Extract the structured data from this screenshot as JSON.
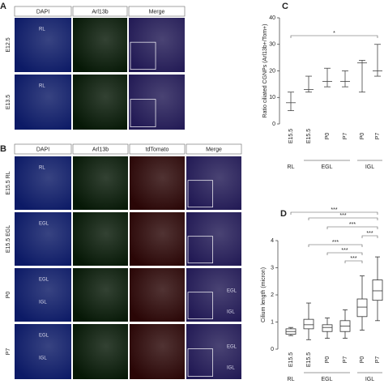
{
  "panel_a": {
    "label": "A",
    "columns": [
      "DAPI",
      "Arl13b",
      "Merge"
    ],
    "rows": [
      {
        "label": "E12.5",
        "tags": [
          "RL"
        ]
      },
      {
        "label": "E13.5",
        "tags": [
          "RL"
        ]
      }
    ]
  },
  "panel_b": {
    "label": "B",
    "columns": [
      "DAPI",
      "Arl13b",
      "tdTomato",
      "Merge"
    ],
    "rows": [
      {
        "label": "E15.5 RL",
        "tags": [
          "RL"
        ]
      },
      {
        "label": "E15.5 EGL",
        "tags": [
          "EGL"
        ]
      },
      {
        "label": "P0",
        "tags": [
          "EGL",
          "IGL"
        ],
        "inset_tags": [
          "EGL",
          "IGL"
        ]
      },
      {
        "label": "P7",
        "tags": [
          "EGL",
          "IGL"
        ],
        "inset_tags": [
          "EGL",
          "IGL"
        ]
      }
    ]
  },
  "chart_data": [
    {
      "type": "range",
      "label": "C",
      "ylabel": "Ratio ciliated CGNPs (Arl13b+/Tom+)",
      "categories": [
        "E15.5",
        "E15.5",
        "P0",
        "P7",
        "P0",
        "P7"
      ],
      "groups": [
        "RL",
        "EGL",
        "IGL"
      ],
      "min": [
        5,
        12,
        14,
        14,
        12,
        18
      ],
      "mean": [
        8,
        13,
        16,
        16,
        23,
        20
      ],
      "max": [
        12,
        18,
        21,
        20,
        24,
        30
      ],
      "ylim": [
        0,
        40
      ],
      "yticks": [
        0,
        10,
        20,
        30,
        40
      ],
      "color": "#444444",
      "significance": [
        "*"
      ]
    },
    {
      "type": "box",
      "label": "D",
      "ylabel": "Cilium length (micron)",
      "categories": [
        "E15.5",
        "E15.5",
        "P0",
        "P7",
        "P0",
        "P7"
      ],
      "groups": [
        "RL",
        "EGL",
        "IGL"
      ],
      "min": [
        0.5,
        0.35,
        0.4,
        0.4,
        0.7,
        1.05
      ],
      "q1": [
        0.55,
        0.75,
        0.65,
        0.65,
        1.2,
        1.8
      ],
      "median": [
        0.65,
        0.9,
        0.8,
        0.85,
        1.55,
        2.15
      ],
      "q3": [
        0.75,
        1.1,
        0.9,
        1.05,
        1.85,
        2.55
      ],
      "max": [
        0.8,
        1.7,
        1.15,
        1.45,
        2.7,
        3.4
      ],
      "ylim": [
        0,
        4
      ],
      "yticks": [
        0,
        1,
        2,
        3,
        4
      ],
      "color": "#333333",
      "significance": [
        "***",
        "***",
        "***",
        "***",
        "***",
        "***",
        "***"
      ]
    }
  ]
}
